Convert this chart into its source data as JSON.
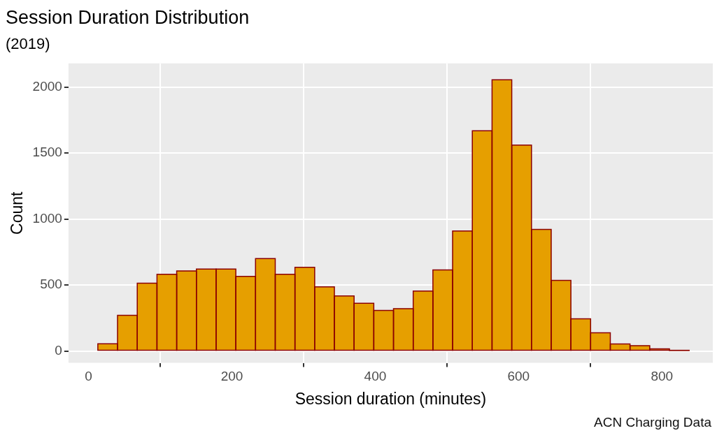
{
  "chart_data": {
    "type": "histogram",
    "title": "Session Duration Distribution",
    "subtitle": "(2019)",
    "xlabel": "Session duration (minutes)",
    "ylabel": "Count",
    "annotations": [
      "ACN Charging Data"
    ],
    "bins": [
      13,
      40.5,
      68,
      95.5,
      123,
      150.5,
      178,
      205.5,
      233,
      260.5,
      288,
      315.5,
      343,
      370.5,
      398,
      425.5,
      453,
      480.5,
      508,
      535.5,
      563,
      590.5,
      618,
      645.5,
      673,
      700.5,
      728,
      755.5,
      783,
      810.5,
      838
    ],
    "values": [
      55,
      271,
      514,
      581,
      607,
      621,
      621,
      566,
      700,
      581,
      635,
      486,
      417,
      362,
      307,
      321,
      455,
      615,
      910,
      1669,
      2056,
      1561,
      922,
      535,
      244,
      138,
      54,
      40,
      16,
      4
    ],
    "color": "#e69f00",
    "xlim": [
      -28,
      871
    ],
    "xticks": [
      0,
      200,
      400,
      600,
      800
    ],
    "ylim": [
      -90,
      2180
    ],
    "yticks": [
      0,
      500,
      1000,
      1500,
      2000
    ],
    "grid": true,
    "legend": false
  }
}
